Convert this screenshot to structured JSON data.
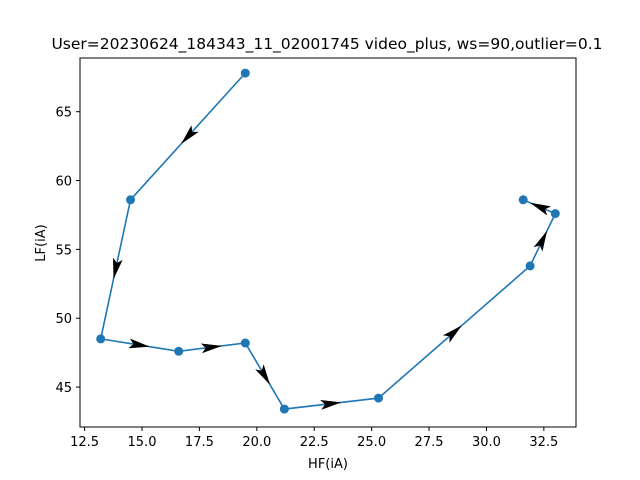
{
  "chart_data": {
    "type": "line",
    "title": "User=20230624_184343_11_02001745 video_plus, ws=90,outlier=0.1",
    "xlabel": "HF(iA)",
    "ylabel": "LF(iA)",
    "xlim": [
      12.3,
      33.9
    ],
    "ylim": [
      42.1,
      68.9
    ],
    "xticks": [
      "12.5",
      "15.0",
      "17.5",
      "20.0",
      "22.5",
      "25.0",
      "27.5",
      "30.0",
      "32.5"
    ],
    "yticks": [
      "45",
      "50",
      "55",
      "60",
      "65"
    ],
    "grid": false,
    "series": [
      {
        "color": "#1f77b4",
        "x": [
          19.5,
          14.5,
          13.2,
          16.6,
          19.5,
          21.2,
          25.3,
          31.9,
          33.0,
          31.6
        ],
        "y": [
          67.8,
          58.6,
          48.5,
          47.6,
          48.2,
          43.4,
          44.2,
          53.8,
          57.6,
          58.6
        ],
        "arrow_color": "#000000"
      }
    ]
  }
}
